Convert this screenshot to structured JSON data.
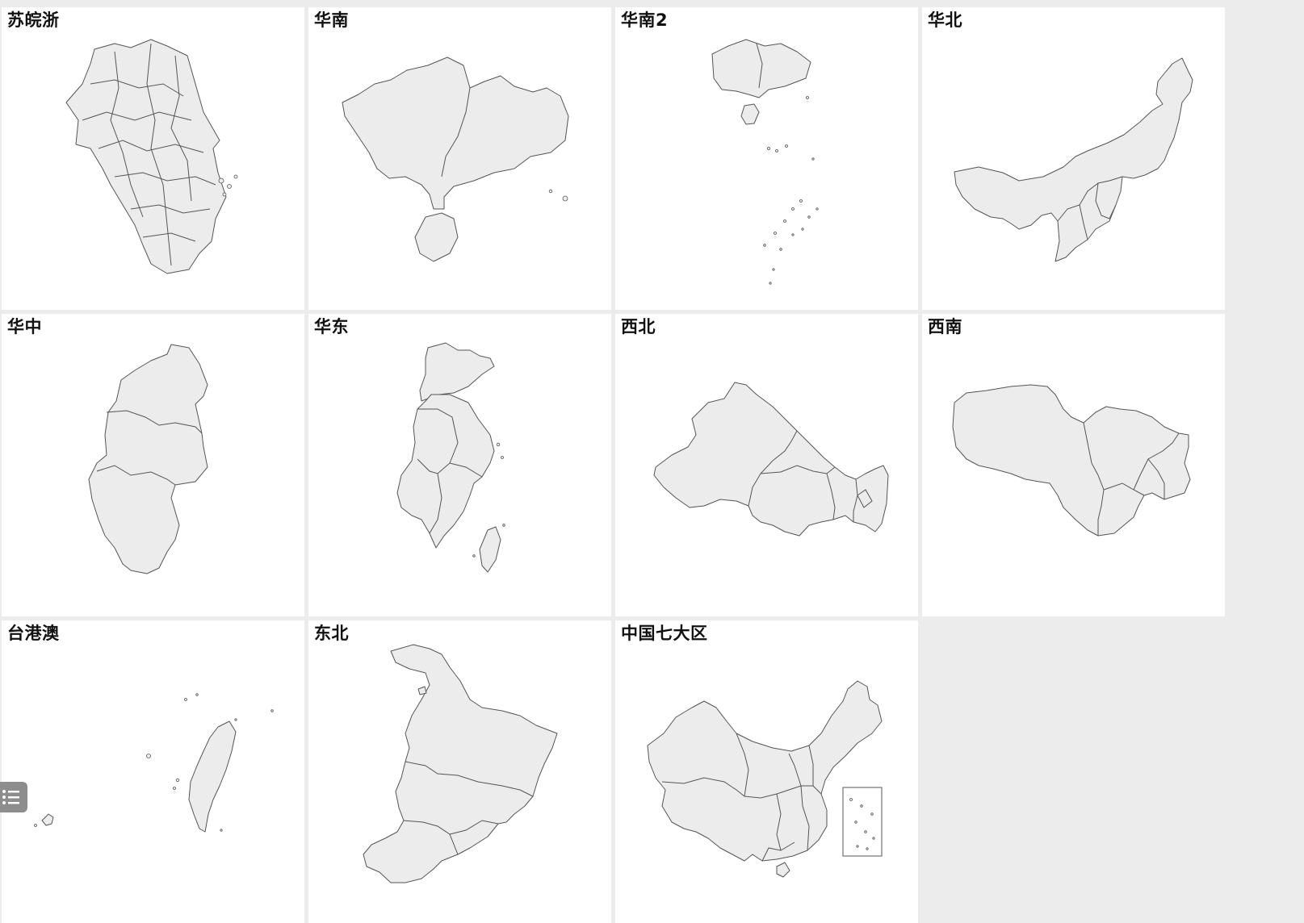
{
  "maps": [
    {
      "id": "suwanzhe",
      "title": "苏皖浙",
      "icon": "su-wan-zhe-map"
    },
    {
      "id": "huanan",
      "title": "华南",
      "icon": "huanan-map"
    },
    {
      "id": "huanan2",
      "title": "华南2",
      "icon": "huanan2-islands-map"
    },
    {
      "id": "huabei",
      "title": "华北",
      "icon": "huabei-map"
    },
    {
      "id": "huazhong",
      "title": "华中",
      "icon": "huazhong-map"
    },
    {
      "id": "huadong",
      "title": "华东",
      "icon": "huadong-map"
    },
    {
      "id": "xibei",
      "title": "西北",
      "icon": "xibei-map"
    },
    {
      "id": "xinan",
      "title": "西南",
      "icon": "xinan-map"
    },
    {
      "id": "taigangao",
      "title": "台港澳",
      "icon": "taigangao-map"
    },
    {
      "id": "dongbei",
      "title": "东北",
      "icon": "dongbei-map"
    },
    {
      "id": "china7",
      "title": "中国七大区",
      "icon": "china-seven-regions-map"
    }
  ],
  "side_button": {
    "icon": "list-menu-icon"
  },
  "colors": {
    "land": "#ececec",
    "border": "#555555",
    "tile": "#ffffff",
    "background": "#ececec"
  }
}
